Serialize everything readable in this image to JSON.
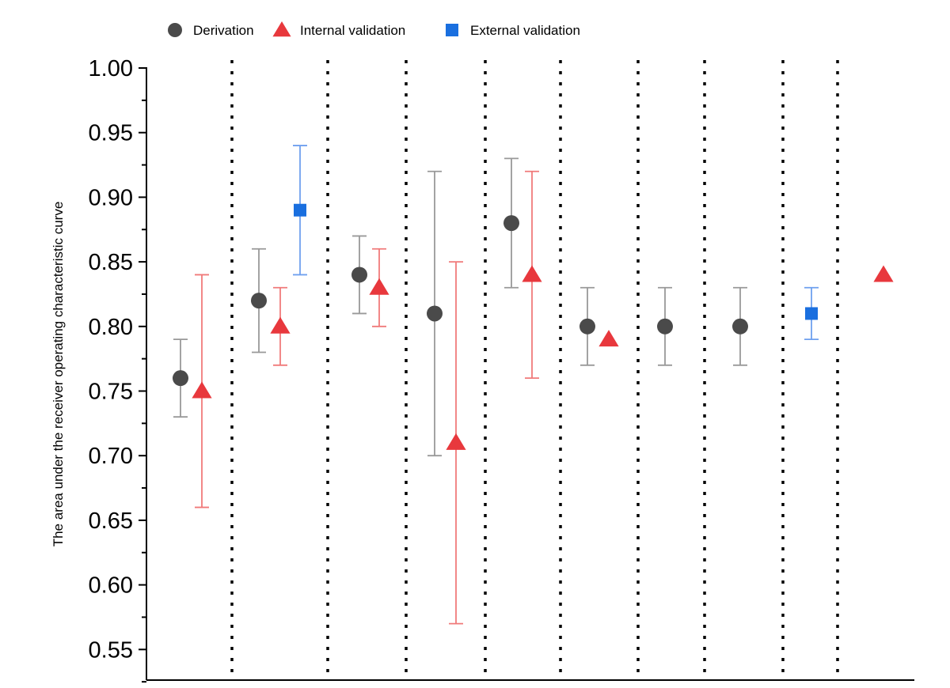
{
  "chart_data": {
    "type": "scatter",
    "title": "",
    "xlabel": "",
    "ylabel": "The area under the receiver operating characteristic curve",
    "ylim": [
      0.525,
      1.0
    ],
    "yticks": [
      "1.00",
      "0.95",
      "0.90",
      "0.85",
      "0.80",
      "0.75",
      "0.70",
      "0.65",
      "0.60",
      "0.55"
    ],
    "grid": false,
    "group_separators": "dotted vertical lines",
    "legend": {
      "placement": "top-left",
      "entries": [
        {
          "name": "Derivation",
          "marker": "circle",
          "color": "#4a4a4a"
        },
        {
          "name": "Internal validation",
          "marker": "triangle",
          "color": "#e8383d"
        },
        {
          "name": "External validation",
          "marker": "square",
          "color": "#1a6fdf"
        }
      ]
    },
    "series": [
      {
        "name": "Derivation",
        "color": "#4a4a4a",
        "errorbar_color": "#999999",
        "points": [
          {
            "group": 1,
            "y": 0.76,
            "lo": 0.73,
            "hi": 0.79
          },
          {
            "group": 2,
            "y": 0.82,
            "lo": 0.78,
            "hi": 0.86
          },
          {
            "group": 3,
            "y": 0.84,
            "lo": 0.81,
            "hi": 0.87
          },
          {
            "group": 4,
            "y": 0.81,
            "lo": 0.7,
            "hi": 0.92
          },
          {
            "group": 5,
            "y": 0.88,
            "lo": 0.83,
            "hi": 0.93
          },
          {
            "group": 6,
            "y": 0.8,
            "lo": 0.77,
            "hi": 0.83
          },
          {
            "group": 7,
            "y": 0.8,
            "lo": 0.77,
            "hi": 0.83
          },
          {
            "group": 8,
            "y": 0.8,
            "lo": 0.77,
            "hi": 0.83
          }
        ]
      },
      {
        "name": "Internal validation",
        "color": "#e8383d",
        "errorbar_color": "#f07a7a",
        "points": [
          {
            "group": 1,
            "y": 0.75,
            "lo": 0.66,
            "hi": 0.84
          },
          {
            "group": 2,
            "y": 0.8,
            "lo": 0.77,
            "hi": 0.83
          },
          {
            "group": 3,
            "y": 0.83,
            "lo": 0.8,
            "hi": 0.86
          },
          {
            "group": 4,
            "y": 0.71,
            "lo": 0.57,
            "hi": 0.85
          },
          {
            "group": 5,
            "y": 0.84,
            "lo": 0.76,
            "hi": 0.92
          },
          {
            "group": 6,
            "y": 0.79
          },
          {
            "group": 10,
            "y": 0.84
          }
        ]
      },
      {
        "name": "External validation",
        "color": "#1a6fdf",
        "errorbar_color": "#6fa0ef",
        "points": [
          {
            "group": 2,
            "y": 0.89,
            "lo": 0.84,
            "hi": 0.94
          },
          {
            "group": 9,
            "y": 0.81,
            "lo": 0.79,
            "hi": 0.83
          }
        ]
      }
    ]
  }
}
